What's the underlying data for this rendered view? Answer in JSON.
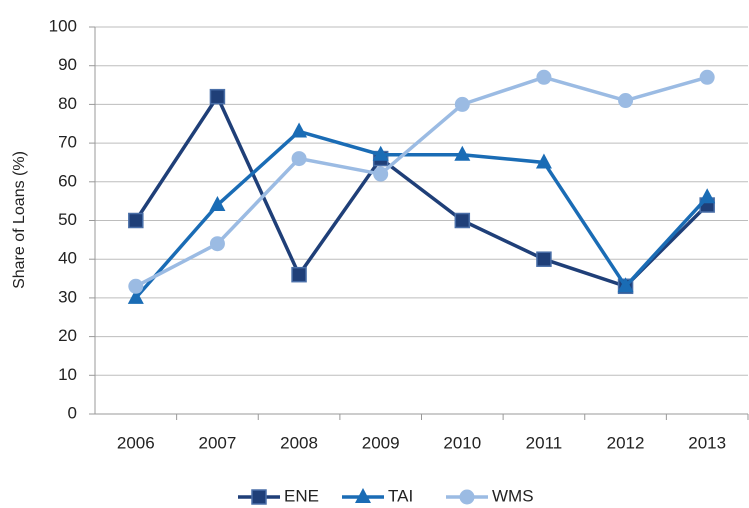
{
  "chart_data": {
    "type": "line",
    "y_label": "Share of Loans (%)",
    "categories": [
      "2006",
      "2007",
      "2008",
      "2009",
      "2010",
      "2011",
      "2012",
      "2013"
    ],
    "series": [
      {
        "name": "ENE",
        "color": "#1f3f78",
        "marker": "square",
        "values": [
          50,
          82,
          36,
          66,
          50,
          40,
          33,
          54
        ]
      },
      {
        "name": "TAI",
        "color": "#1a6cb5",
        "marker": "triangle",
        "values": [
          30,
          54,
          73,
          67,
          67,
          65,
          33,
          56
        ]
      },
      {
        "name": "WMS",
        "color": "#9bbbe3",
        "marker": "circle",
        "values": [
          33,
          44,
          66,
          62,
          80,
          87,
          81,
          87
        ]
      }
    ],
    "ylim": [
      0,
      100
    ],
    "yticks": [
      0,
      10,
      20,
      30,
      40,
      50,
      60,
      70,
      80,
      90,
      100
    ],
    "grid": true,
    "legend": "bottom"
  }
}
